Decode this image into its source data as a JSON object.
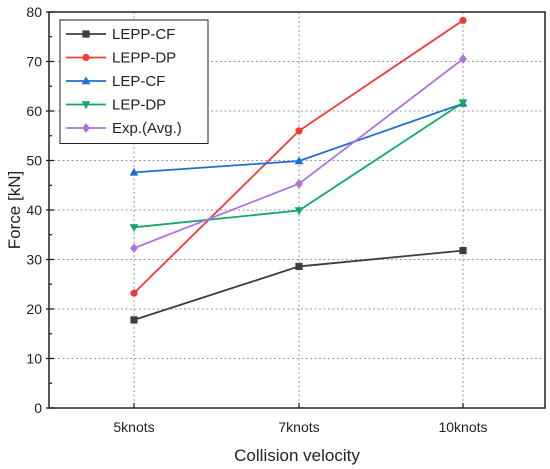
{
  "chart_data": {
    "type": "line",
    "xlabel": "Collision velocity",
    "ylabel": "Force [kN]",
    "categories": [
      "5knots",
      "7knots",
      "10knots"
    ],
    "ylim": [
      0,
      80
    ],
    "yticks": [
      0,
      10,
      20,
      30,
      40,
      50,
      60,
      70,
      80
    ],
    "grid": true,
    "legend": "top-left",
    "series": [
      {
        "name": "LEPP-CF",
        "color": "#3d3d3d",
        "marker": "square",
        "values": [
          17.8,
          28.6,
          31.8
        ]
      },
      {
        "name": "LEPP-DP",
        "color": "#f03b3b",
        "marker": "circle",
        "values": [
          23.2,
          56.0,
          78.3
        ]
      },
      {
        "name": "LEP-CF",
        "color": "#1f6fd1",
        "marker": "triangle-up",
        "values": [
          47.6,
          49.9,
          61.5
        ]
      },
      {
        "name": "LEP-DP",
        "color": "#12a86a",
        "marker": "triangle-down",
        "values": [
          36.5,
          39.9,
          61.7
        ]
      },
      {
        "name": "Exp.(Avg.)",
        "color": "#b073e0",
        "marker": "diamond",
        "values": [
          32.3,
          45.3,
          70.5
        ]
      }
    ]
  }
}
